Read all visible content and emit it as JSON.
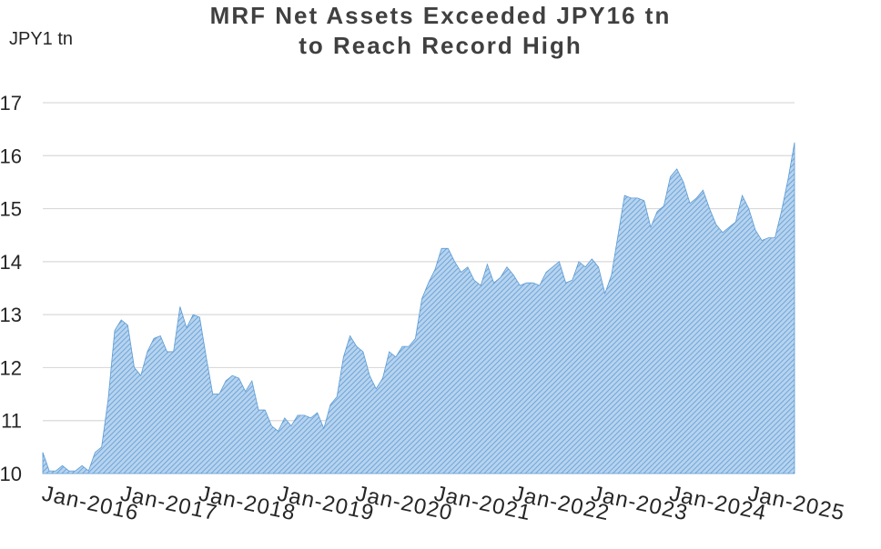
{
  "chart_data": {
    "type": "area",
    "title_lines": [
      "MRF Net Assets Exceeded JPY16 tn",
      "to Reach Record High"
    ],
    "ylabel": "JPY1 tn",
    "ylim": [
      10,
      17
    ],
    "yticks": [
      10,
      11,
      12,
      13,
      14,
      15,
      16,
      17
    ],
    "xtick_labels": [
      "Jan-2016",
      "Jan-2017",
      "Jan-2018",
      "Jan-2019",
      "Jan-2020",
      "Jan-2021",
      "Jan-2022",
      "Jan-2023",
      "Jan-2024",
      "Jan-2025"
    ],
    "grid": true,
    "colors": {
      "fill": "#9dc3e6",
      "hatch": "#5b9bd5",
      "grid": "#d9d9d9",
      "text": "#262626"
    },
    "series": [
      {
        "x_start": "Jan-2016",
        "x_step": "month",
        "values": [
          10.4,
          10.05,
          10.05,
          10.15,
          10.05,
          10.05,
          10.15,
          10.05,
          10.4,
          10.5,
          11.4,
          12.7,
          12.9,
          12.8,
          12.0,
          11.85,
          12.3,
          12.55,
          12.6,
          12.3,
          12.3,
          13.15,
          12.75,
          13.0,
          12.95,
          12.2,
          11.5,
          11.5,
          11.75,
          11.85,
          11.8,
          11.55,
          11.75,
          11.2,
          11.2,
          10.9,
          10.8,
          11.05,
          10.9,
          11.1,
          11.1,
          11.05,
          11.15,
          10.85,
          11.3,
          11.45,
          12.2,
          12.6,
          12.4,
          12.3,
          11.85,
          11.6,
          11.8,
          12.3,
          12.2,
          12.4,
          12.4,
          12.55,
          13.3,
          13.6,
          13.85,
          14.25,
          14.25,
          14.0,
          13.8,
          13.9,
          13.65,
          13.55,
          13.95,
          13.6,
          13.7,
          13.9,
          13.75,
          13.55,
          13.6,
          13.6,
          13.55,
          13.8,
          13.9,
          14.0,
          13.6,
          13.65,
          14.0,
          13.9,
          14.05,
          13.9,
          13.4,
          13.75,
          14.5,
          15.25,
          15.2,
          15.2,
          15.15,
          14.65,
          14.95,
          15.05,
          15.6,
          15.75,
          15.5,
          15.1,
          15.2,
          15.35,
          15.0,
          14.7,
          14.55,
          14.65,
          14.75,
          15.25,
          15.0,
          14.6,
          14.4,
          14.45,
          14.45,
          14.95,
          15.55,
          16.25
        ]
      }
    ]
  }
}
